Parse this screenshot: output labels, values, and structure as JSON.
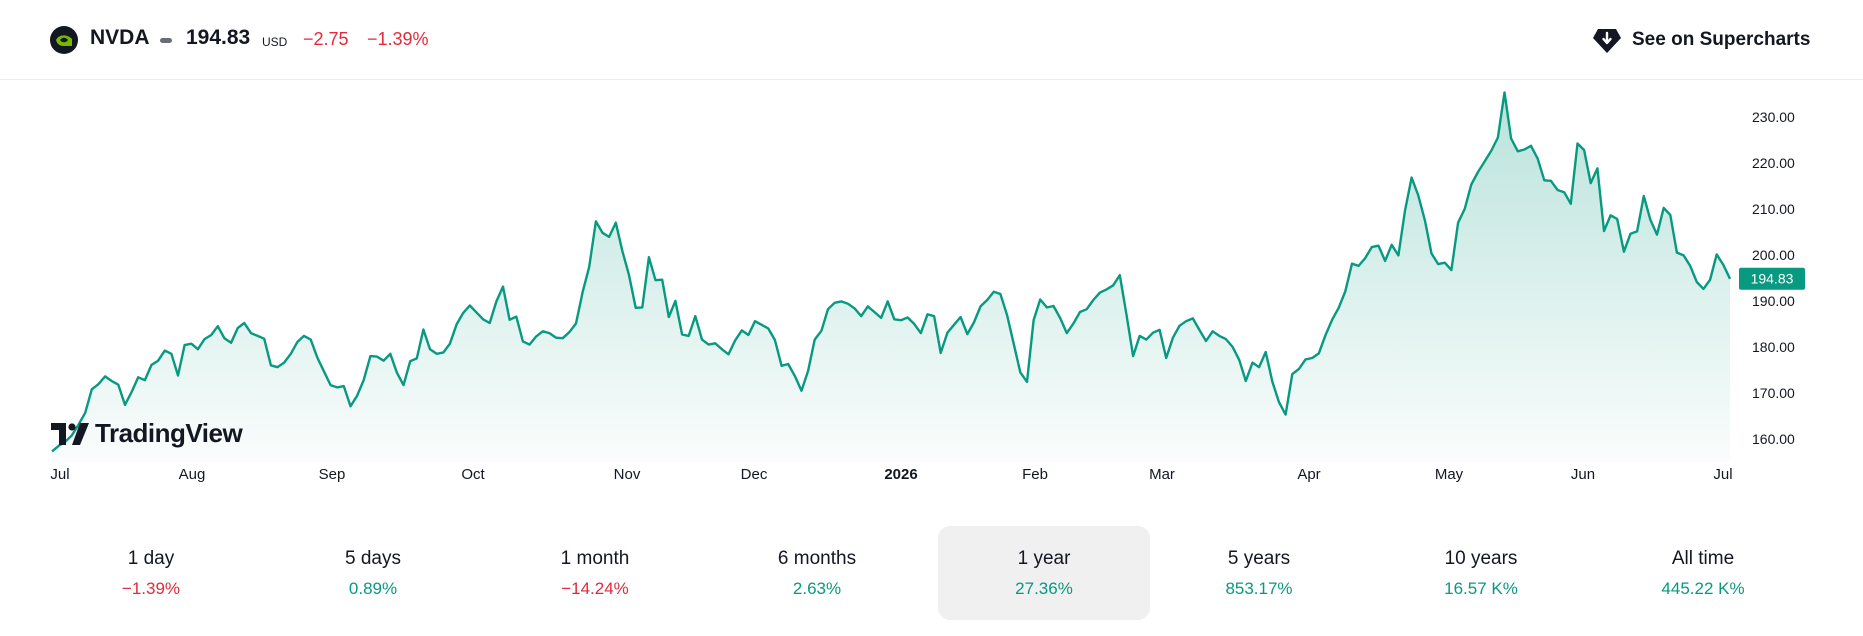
{
  "header": {
    "symbol": "NVDA",
    "price": "194.83",
    "currency": "USD",
    "change": "−2.75",
    "change_pct": "−1.39%",
    "see_label": "See on Supercharts",
    "logo_icon": "nvidia-logo-icon",
    "button_icon": "supercharts-icon"
  },
  "watermark": "TradingView",
  "colors": {
    "line": "#089981",
    "negative": "#e22a3a",
    "positive": "#089981",
    "active_period_bg": "#f0f0f0"
  },
  "periods": [
    {
      "label": "1 day",
      "value": "−1.39%",
      "sign": "neg"
    },
    {
      "label": "5 days",
      "value": "0.89%",
      "sign": "pos"
    },
    {
      "label": "1 month",
      "value": "−14.24%",
      "sign": "neg"
    },
    {
      "label": "6 months",
      "value": "2.63%",
      "sign": "pos"
    },
    {
      "label": "1 year",
      "value": "27.36%",
      "sign": "pos",
      "active": true
    },
    {
      "label": "5 years",
      "value": "853.17%",
      "sign": "pos"
    },
    {
      "label": "10 years",
      "value": "16.57 K%",
      "sign": "pos"
    },
    {
      "label": "All time",
      "value": "445.22 K%",
      "sign": "pos"
    }
  ],
  "chart_data": {
    "type": "area",
    "ylim": [
      155,
      238
    ],
    "y_ticks": [
      "160.00",
      "170.00",
      "180.00",
      "190.00",
      "200.00",
      "210.00",
      "220.00",
      "230.00"
    ],
    "x_ticks": [
      {
        "label": "Jul",
        "bold": false
      },
      {
        "label": "Aug",
        "bold": false
      },
      {
        "label": "Sep",
        "bold": false
      },
      {
        "label": "Oct",
        "bold": false
      },
      {
        "label": "Nov",
        "bold": false
      },
      {
        "label": "Dec",
        "bold": false
      },
      {
        "label": "2026",
        "bold": true
      },
      {
        "label": "Feb",
        "bold": false
      },
      {
        "label": "Mar",
        "bold": false
      },
      {
        "label": "Apr",
        "bold": false
      },
      {
        "label": "May",
        "bold": false
      },
      {
        "label": "Jun",
        "bold": false
      },
      {
        "label": "Jul",
        "bold": false
      }
    ],
    "last_price": "194.83",
    "series": [
      {
        "values": [
          157.3,
          158.5,
          159.4,
          160.8,
          163.1,
          165.7,
          170.8,
          171.9,
          173.6,
          172.6,
          171.8,
          167.4,
          170.2,
          173.4,
          172.8,
          176.1,
          177.0,
          179.2,
          178.5,
          173.8,
          180.4,
          180.7,
          179.5,
          181.7,
          182.6,
          184.5,
          181.9,
          180.9,
          184.1,
          185.2,
          183.0,
          182.4,
          181.8,
          176.0,
          175.6,
          176.6,
          178.5,
          181.1,
          182.4,
          181.6,
          177.7,
          174.7,
          171.7,
          171.2,
          171.5,
          167.1,
          169.4,
          172.8,
          178.0,
          177.9,
          177.0,
          178.5,
          174.4,
          171.7,
          176.9,
          177.5,
          183.8,
          179.5,
          178.5,
          178.8,
          180.7,
          184.9,
          187.4,
          189.0,
          187.5,
          186.0,
          185.2,
          189.9,
          193.1,
          185.9,
          186.6,
          181.2,
          180.5,
          182.3,
          183.4,
          183.0,
          182.0,
          181.9,
          183.2,
          185.1,
          191.9,
          197.4,
          207.3,
          204.8,
          203.9,
          207.0,
          200.8,
          195.6,
          188.5,
          188.6,
          199.5,
          194.5,
          194.6,
          186.5,
          190.0,
          182.7,
          182.4,
          186.7,
          181.6,
          180.5,
          180.8,
          179.5,
          178.4,
          181.4,
          183.6,
          182.6,
          185.6,
          184.8,
          184.0,
          181.5,
          175.9,
          176.3,
          173.7,
          170.5,
          174.8,
          181.6,
          183.5,
          188.2,
          189.6,
          189.9,
          189.4,
          188.4,
          186.7,
          188.8,
          187.6,
          186.3,
          189.9,
          186.0,
          185.8,
          186.4,
          185.0,
          183.0,
          187.1,
          186.7,
          178.7,
          183.1,
          184.8,
          186.5,
          182.8,
          185.3,
          188.8,
          190.2,
          192.0,
          191.5,
          186.9,
          180.7,
          174.5,
          172.4,
          185.8,
          190.3,
          188.6,
          188.9,
          186.3,
          183.0,
          185.1,
          187.6,
          188.2,
          190.2,
          191.8,
          192.5,
          193.4,
          195.6,
          187.0,
          178.0,
          182.4,
          181.6,
          183.1,
          183.7,
          177.6,
          182.0,
          184.6,
          185.6,
          186.2,
          183.7,
          181.3,
          183.4,
          182.4,
          181.7,
          180.0,
          177.2,
          172.6,
          176.6,
          175.6,
          178.9,
          172.4,
          168.0,
          165.3,
          174.1,
          175.2,
          177.3,
          177.6,
          178.6,
          182.5,
          185.9,
          188.5,
          192.1,
          198.1,
          197.6,
          199.3,
          201.7,
          202.0,
          198.7,
          202.2,
          199.9,
          209.6,
          216.8,
          212.9,
          207.5,
          200.3,
          198.0,
          198.3,
          196.7,
          207.0,
          210.0,
          215.3,
          218.0,
          220.3,
          222.6,
          225.5,
          235.3,
          225.3,
          222.5,
          222.9,
          223.7,
          220.9,
          216.2,
          216.1,
          214.1,
          213.6,
          211.1,
          224.2,
          222.8,
          215.6,
          218.8,
          205.2,
          208.6,
          207.8,
          200.7,
          204.6,
          205.1,
          212.8,
          207.6,
          204.4,
          210.2,
          208.7,
          200.5,
          199.9,
          197.6,
          194.1,
          192.6,
          194.6,
          200.1,
          197.8,
          194.8
        ]
      }
    ]
  }
}
